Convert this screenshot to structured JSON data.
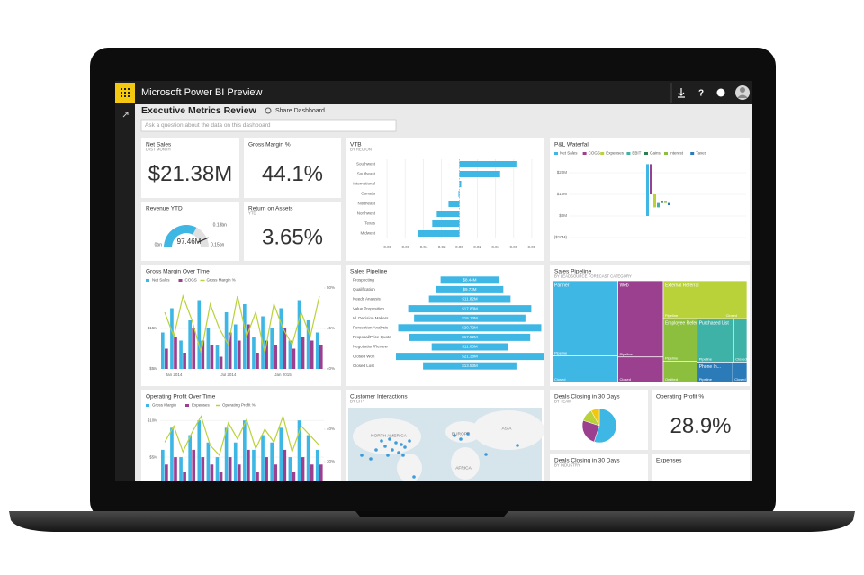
{
  "app": {
    "title": "Microsoft Power BI Preview"
  },
  "dashboard": {
    "title": "Executive Metrics Review",
    "share": "Share Dashboard",
    "search_placeholder": "Ask a question about the data on this dashboard"
  },
  "tiles": {
    "net_sales": {
      "title": "Net Sales",
      "subtitle": "LAST MONTH",
      "value": "$21.38M"
    },
    "gross_margin": {
      "title": "Gross Margin %",
      "value": "44.1%"
    },
    "revenue_ytd": {
      "title": "Revenue YTD",
      "chart_data": {
        "type": "gauge",
        "value": 97.46,
        "value_label": "97.46M",
        "min": {
          "value": 0,
          "label": "0bn"
        },
        "max": {
          "value": 150,
          "label": "0.15bn"
        },
        "target": {
          "value": 130,
          "label": "0.13bn"
        },
        "color": "#3eb7e5"
      }
    },
    "return_on_assets": {
      "title": "Return on Assets",
      "subtitle": "YTD",
      "value": "3.65%"
    },
    "vtb": {
      "title": "VTB",
      "subtitle": "BY REGION",
      "chart_data": {
        "type": "hbar",
        "categories": [
          "Southwest",
          "Southeast",
          "International",
          "Canada",
          "Northeast",
          "Northwest",
          "Texas",
          "Midwest"
        ],
        "values": [
          0.063,
          0.045,
          0.002,
          -0.001,
          -0.012,
          -0.025,
          -0.03,
          -0.046
        ],
        "color": "#3eb7e5",
        "xlim": [
          -0.09,
          0.09
        ],
        "xticks": [
          -0.08,
          -0.06,
          -0.04,
          -0.02,
          {
            "value": 0,
            "label": "0.00"
          },
          0.02,
          0.04,
          0.06,
          0.08
        ]
      }
    },
    "pnl": {
      "title": "P&L Waterfall",
      "chart_data": {
        "type": "waterfall",
        "categories": [
          "Net Sales",
          "COGS",
          "Expenses",
          "EBIT",
          "Gains",
          "Interest",
          "Taxes"
        ],
        "values": [
          24,
          -14,
          -6,
          2,
          1,
          -1,
          -1
        ],
        "colors": [
          "#3eb7e5",
          "#9b3f8f",
          "#b9d23a",
          "#3fb2a8",
          "#2e7d4f",
          "#8dbf3f",
          "#2b7bb9"
        ],
        "ylim": [
          -12.5,
          25
        ],
        "yticks": [
          {
            "value": 20,
            "label": "$20M"
          },
          {
            "value": 10,
            "label": "$10M"
          },
          {
            "value": 0,
            "label": "$0M"
          },
          {
            "value": -10,
            "label": "($10M)"
          }
        ]
      }
    },
    "gm_over_time": {
      "title": "Gross Margin Over Time",
      "chart_data": {
        "type": "combo",
        "categories": [
          null,
          "Jan 2014",
          null,
          null,
          null,
          null,
          null,
          "Jul 2014",
          null,
          null,
          null,
          null,
          null,
          "Jan 2015",
          null,
          null,
          null,
          null
        ],
        "series": [
          {
            "name": "Net Sales",
            "color": "#3eb7e5",
            "values": [
              14,
              20,
              12,
              17,
              22,
              15,
              11,
              19,
              16,
              21,
              13,
              18,
              15,
              20,
              12,
              22,
              17,
              14
            ]
          },
          {
            "name": "COGS",
            "color": "#9b3f8f",
            "values": [
              10,
              13,
              9,
              15,
              12,
              11,
              8,
              14,
              12,
              16,
              9,
              12,
              11,
              15,
              10,
              13,
              12,
              11
            ]
          },
          {
            "name": "Gross Margin %",
            "color": "#b9d23a",
            "axis": "y2",
            "values": [
              47,
              44,
              49,
              46,
              42,
              48,
              45,
              43,
              49,
              44,
              47,
              42,
              48,
              45,
              43,
              47,
              44,
              49
            ]
          }
        ],
        "ylim": [
          5,
          25
        ],
        "yticks": [
          {
            "value": 5,
            "label": "$5M"
          },
          {
            "value": 15,
            "label": "$15M"
          }
        ],
        "y2lim": [
          40,
          50
        ],
        "y2ticks": [
          {
            "value": 40,
            "label": "40%"
          },
          {
            "value": 45,
            "label": "45%"
          },
          {
            "value": 50,
            "label": "50%"
          }
        ]
      }
    },
    "pipeline_funnel": {
      "title": "Sales Pipeline",
      "chart_data": {
        "type": "funnel",
        "categories": [
          "Prospecting",
          "Qualification",
          "Needs Analysis",
          "Value Proposition",
          "Id. Decision Makers",
          "Perception Analysis",
          "Proposal/Price Quote",
          "Negotiation/Review",
          "Closed Won",
          "Closed Lost"
        ],
        "values": [
          8.44,
          9.73,
          11.82,
          17.83,
          16.13,
          20.72,
          17.52,
          11.03,
          21.38,
          13.53
        ],
        "value_labels": [
          "$8.44M",
          "$9.73M",
          "$11.82M",
          "$17.83M",
          "$16.13M",
          "$20.72M",
          "$17.52M",
          "$11.03M",
          "$21.38M",
          "$13.53M"
        ],
        "color": "#3eb7e5"
      }
    },
    "pipeline_treemap": {
      "title": "Sales Pipeline",
      "subtitle": "BY LEADSOURCE FORECAST CATEGORY",
      "chart_data": {
        "type": "treemap",
        "groups": [
          {
            "name": "Partner",
            "color": "#3eb7e5",
            "children": [
              {
                "name": "Pipeline",
                "value": 34
              },
              {
                "name": "Closed",
                "value": 12
              }
            ]
          },
          {
            "name": "Web",
            "color": "#9b3f8f",
            "children": [
              {
                "name": "Pipeline",
                "value": 24
              },
              {
                "name": "Closed",
                "value": 8
              }
            ]
          },
          {
            "name": "External Referral",
            "color": "#b9d23a",
            "children": [
              {
                "name": "Pipeline",
                "value": 16
              },
              {
                "name": "Closed",
                "value": 6
              }
            ]
          },
          {
            "name": "Employee Referral",
            "color": "#8dbf3f",
            "children": [
              {
                "name": "Pipeline",
                "value": 10
              },
              {
                "name": "Omitted",
                "value": 5
              }
            ]
          },
          {
            "name": "Purchased List",
            "color": "#3fb2a8",
            "children": [
              {
                "name": "Pipeline",
                "value": 11
              },
              {
                "name": "Closed",
                "value": 4
              }
            ]
          },
          {
            "name": "Phone In...",
            "color": "#2b7bb9",
            "children": [
              {
                "name": "Pipeline",
                "value": 5
              },
              {
                "name": "Closed",
                "value": 2
              }
            ]
          }
        ]
      }
    },
    "op_over_time": {
      "title": "Operating Profit Over Time",
      "chart_data": {
        "type": "combo",
        "categories": [
          null,
          null,
          null,
          null,
          null,
          null,
          null,
          null,
          null,
          null,
          null,
          null,
          null,
          null,
          null,
          null,
          null,
          null
        ],
        "series": [
          {
            "name": "Gross Margin",
            "color": "#3eb7e5",
            "values": [
              6,
              9,
              5,
              8,
              10,
              7,
              5,
              9,
              7,
              10,
              6,
              8,
              7,
              9,
              5,
              10,
              8,
              6
            ]
          },
          {
            "name": "Expenses",
            "color": "#9b3f8f",
            "values": [
              4,
              5,
              3,
              6,
              5,
              4,
              3,
              5,
              4,
              6,
              3,
              5,
              4,
              6,
              3,
              5,
              4,
              4
            ]
          },
          {
            "name": "Operating Profit %",
            "color": "#b9d23a",
            "axis": "y2",
            "values": [
              36,
              41,
              33,
              39,
              44,
              35,
              32,
              42,
              37,
              43,
              34,
              40,
              36,
              44,
              33,
              41,
              38,
              35
            ]
          }
        ],
        "ylim": [
          0,
          11
        ],
        "yticks": [
          {
            "value": 5,
            "label": "$5M"
          },
          {
            "value": 10,
            "label": "$10M"
          }
        ],
        "y2lim": [
          20,
          45
        ],
        "y2ticks": [
          {
            "value": 30,
            "label": "30%"
          },
          {
            "value": 40,
            "label": "40%"
          }
        ]
      }
    },
    "customer_interactions": {
      "title": "Customer Interactions",
      "subtitle": "BY CITY",
      "regions": [
        "NORTH AMERICA",
        "EUROPE",
        "ASIA",
        "AFRICA"
      ]
    },
    "deals_team": {
      "title": "Deals Closing in 30 Days",
      "subtitle": "BY TEAM",
      "chart_data": {
        "type": "pie",
        "values": [
          55,
          25,
          12,
          8
        ],
        "colors": [
          "#3eb7e5",
          "#9b3f8f",
          "#b9d23a",
          "#f2c80f"
        ]
      }
    },
    "op_profit_pct": {
      "title": "Operating Profit %",
      "value": "28.9%"
    },
    "deals_industry": {
      "title": "Deals Closing in 30 Days",
      "subtitle": "BY INDUSTRY"
    },
    "expenses": {
      "title": "Expenses"
    }
  }
}
